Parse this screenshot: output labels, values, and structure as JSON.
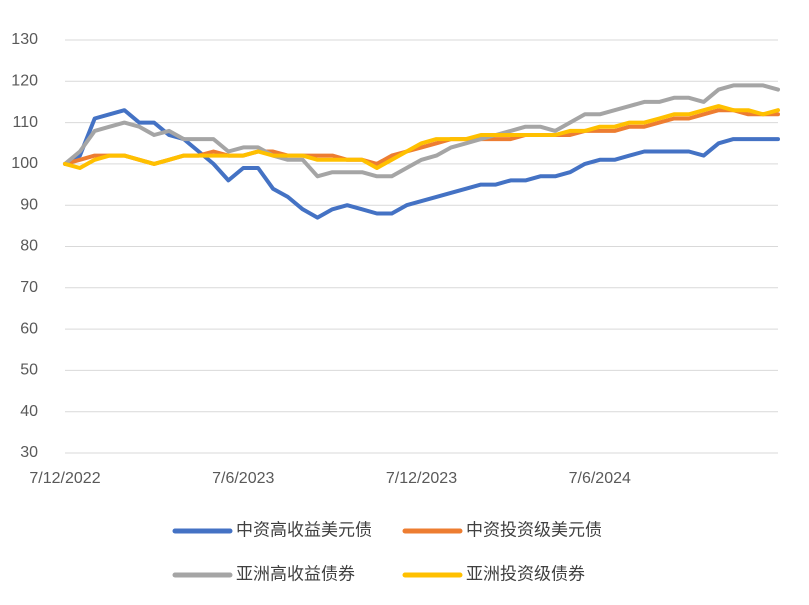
{
  "chart_data": {
    "type": "line",
    "categories": [
      "7/12/2022",
      null,
      null,
      null,
      null,
      null,
      null,
      null,
      null,
      null,
      null,
      null,
      "7/6/2023",
      null,
      null,
      null,
      null,
      null,
      null,
      null,
      null,
      null,
      null,
      null,
      "7/12/2023",
      null,
      null,
      null,
      null,
      null,
      null,
      null,
      null,
      null,
      null,
      null,
      "7/6/2024",
      null,
      null,
      null,
      null,
      null,
      null,
      null,
      null,
      null,
      null,
      null,
      null
    ],
    "series": [
      {
        "name": "中资高收益美元债",
        "color": "#4472c4",
        "values": [
          100,
          102,
          111,
          112,
          113,
          110,
          110,
          107,
          106,
          103,
          100,
          96,
          99,
          99,
          94,
          92,
          89,
          87,
          89,
          90,
          89,
          88,
          88,
          90,
          91,
          92,
          93,
          94,
          95,
          95,
          96,
          96,
          97,
          97,
          98,
          100,
          101,
          101,
          102,
          103,
          103,
          103,
          103,
          102,
          105,
          106,
          106,
          106,
          106
        ]
      },
      {
        "name": "中资投资级美元债",
        "color": "#ed7d31",
        "values": [
          100,
          101,
          102,
          102,
          102,
          101,
          100,
          101,
          102,
          102,
          103,
          102,
          102,
          103,
          103,
          102,
          102,
          102,
          102,
          101,
          101,
          100,
          102,
          103,
          104,
          105,
          106,
          106,
          106,
          106,
          106,
          107,
          107,
          107,
          107,
          108,
          108,
          108,
          109,
          109,
          110,
          111,
          111,
          112,
          113,
          113,
          112,
          112,
          112
        ]
      },
      {
        "name": "亚洲高收益债券",
        "color": "#a5a5a5",
        "values": [
          100,
          103,
          108,
          109,
          110,
          109,
          107,
          108,
          106,
          106,
          106,
          103,
          104,
          104,
          102,
          101,
          101,
          97,
          98,
          98,
          98,
          97,
          97,
          99,
          101,
          102,
          104,
          105,
          106,
          107,
          108,
          109,
          109,
          108,
          110,
          112,
          112,
          113,
          114,
          115,
          115,
          116,
          116,
          115,
          118,
          119,
          119,
          119,
          118
        ]
      },
      {
        "name": "亚洲投资级债券",
        "color": "#ffc000",
        "values": [
          100,
          99,
          101,
          102,
          102,
          101,
          100,
          101,
          102,
          102,
          102,
          102,
          102,
          103,
          102,
          102,
          102,
          101,
          101,
          101,
          101,
          99,
          101,
          103,
          105,
          106,
          106,
          106,
          107,
          107,
          107,
          107,
          107,
          107,
          108,
          108,
          109,
          109,
          110,
          110,
          111,
          112,
          112,
          113,
          114,
          113,
          113,
          112,
          113
        ]
      }
    ],
    "ylim": [
      30,
      130
    ],
    "yticks": [
      30,
      40,
      50,
      60,
      70,
      80,
      90,
      100,
      110,
      120,
      130
    ],
    "grid": true
  }
}
